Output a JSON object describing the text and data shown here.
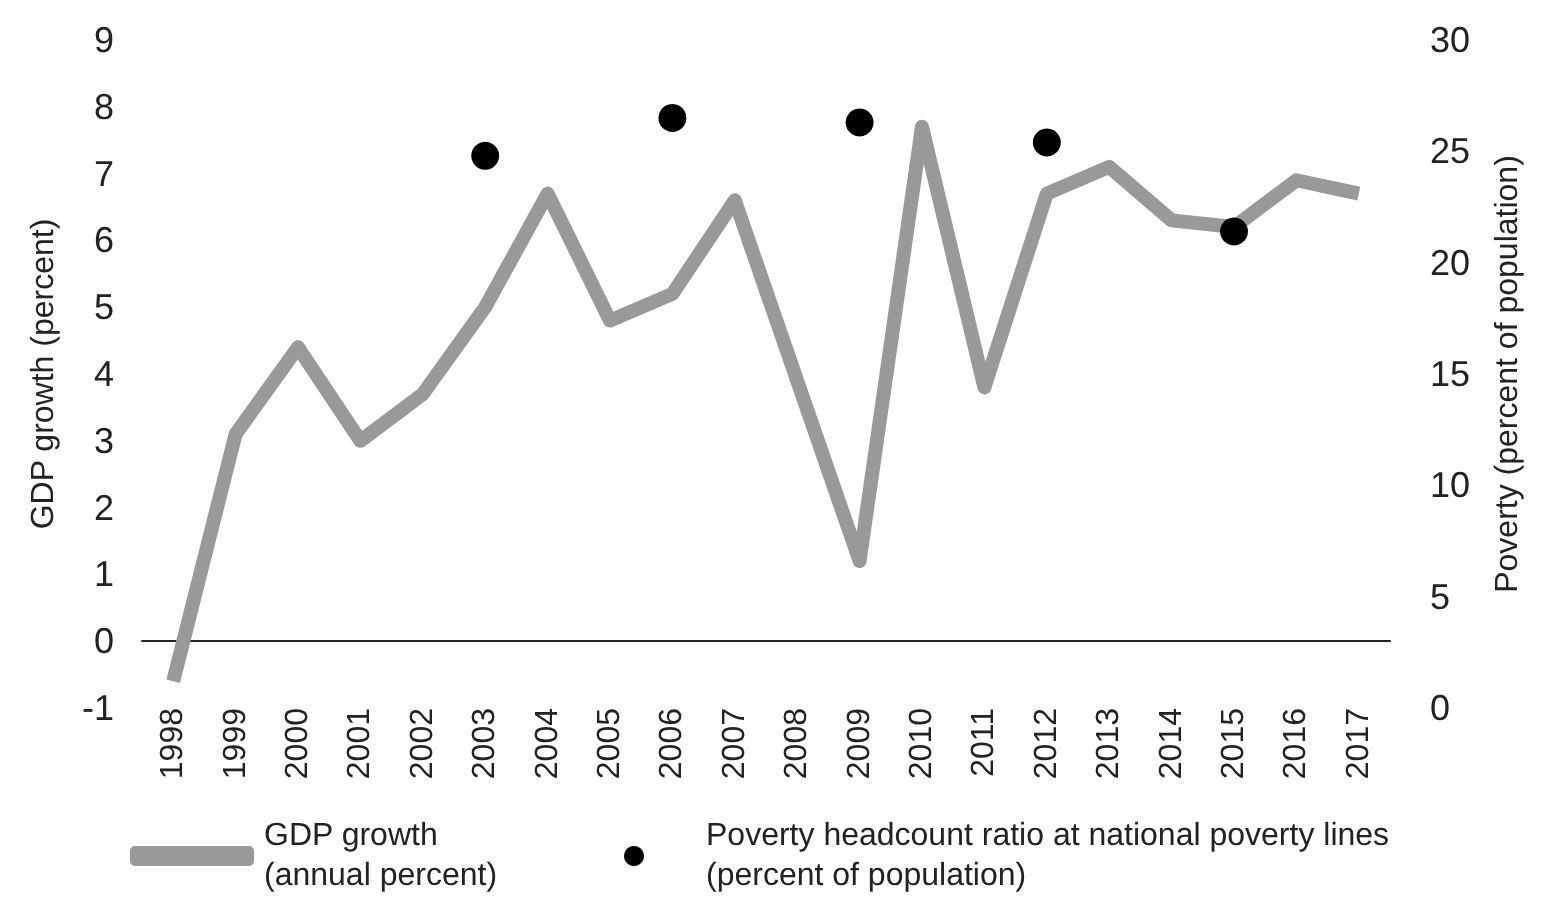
{
  "chart_data": {
    "type": "line",
    "categories": [
      "1998",
      "1999",
      "2000",
      "2001",
      "2002",
      "2003",
      "2004",
      "2005",
      "2006",
      "2007",
      "2008",
      "2009",
      "2010",
      "2011",
      "2012",
      "2013",
      "2014",
      "2015",
      "2016",
      "2017"
    ],
    "ylabel": "GDP growth (percent)",
    "y2label": "Poverty (percent of population)",
    "series": [
      {
        "name": "GDP growth (annual percent)",
        "color": "#999999",
        "values": [
          -0.6,
          3.1,
          4.4,
          3.0,
          3.7,
          5.0,
          6.7,
          4.8,
          5.2,
          6.6,
          3.9,
          1.2,
          7.7,
          3.8,
          6.7,
          7.1,
          6.3,
          6.2,
          6.9,
          6.7
        ]
      },
      {
        "name": "Poverty headcount ratio at national poverty lines (percent of population)",
        "type": "scatter",
        "axis": "y2",
        "color": "#000000",
        "marker": "circle",
        "values": [
          null,
          null,
          null,
          null,
          null,
          24.8,
          null,
          null,
          26.5,
          null,
          null,
          26.3,
          null,
          null,
          25.4,
          null,
          null,
          21.4,
          null,
          null
        ]
      }
    ],
    "ylim": [
      -1,
      9
    ],
    "yticks": [
      -1,
      0,
      1,
      2,
      3,
      4,
      5,
      6,
      7,
      8,
      9
    ],
    "y2lim": [
      0,
      30
    ],
    "y2ticks": [
      0,
      5,
      10,
      15,
      20,
      25,
      30
    ],
    "grid": false,
    "legend": "bottom"
  }
}
